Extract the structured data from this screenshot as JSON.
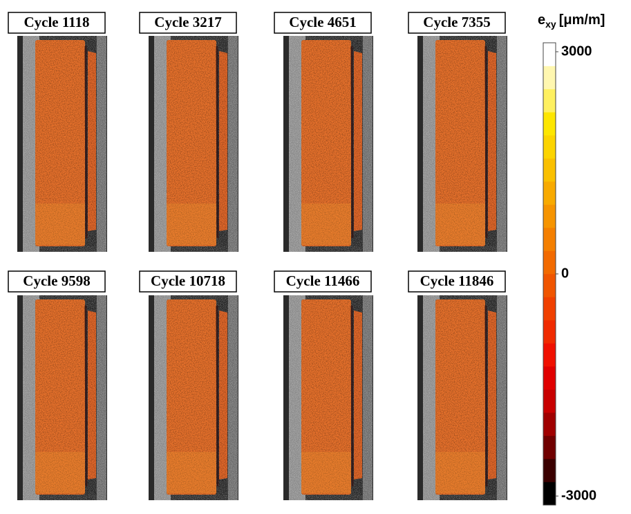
{
  "panels": [
    "Cycle 1118",
    "Cycle 3217",
    "Cycle 4651",
    "Cycle 7355",
    "Cycle 9598",
    "Cycle 10718",
    "Cycle 11466",
    "Cycle 11846"
  ],
  "colorbar": {
    "symbol": "e",
    "subscript": "xy",
    "unit": "[μm/m]",
    "range": [
      -3000,
      3000
    ],
    "ticks": [
      3000,
      0,
      -3000
    ],
    "colors": [
      "#000000",
      "#3a0000",
      "#700000",
      "#a00000",
      "#c80000",
      "#e00000",
      "#f01000",
      "#f02a00",
      "#f04000",
      "#f05500",
      "#f26a00",
      "#f47f00",
      "#f69400",
      "#f8aa00",
      "#fac000",
      "#fcd400",
      "#fde600",
      "#fef060",
      "#fff7b0",
      "#ffffff"
    ]
  }
}
